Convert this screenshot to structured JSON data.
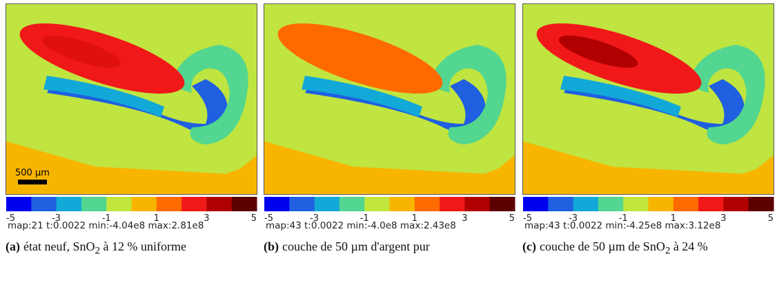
{
  "scale_bar": "500 µm",
  "colorbar": {
    "ticks": [
      "-5",
      "-3",
      "-1",
      "1",
      "3",
      "5"
    ],
    "colors": [
      "#0000f0",
      "#1f5fe0",
      "#12a8d8",
      "#52d690",
      "#c2e63c",
      "#f7b500",
      "#ff6a00",
      "#f01818",
      "#b00000",
      "#5c0000"
    ]
  },
  "panels": [
    {
      "label": "(a)",
      "caption": [
        "état neuf, SnO",
        "2",
        " à 12 % uniforme"
      ],
      "info": "map:21 t:0.0022 min:-4.04e8 max:2.81e8"
    },
    {
      "label": "(b)",
      "caption": [
        "couche de 50 µm d'argent pur"
      ],
      "info": "map:43 t:0.0022 min:-4.0e8 max:2.43e8"
    },
    {
      "label": "(c)",
      "caption": [
        "couche de 50 µm de SnO",
        "2",
        " à 24 %"
      ],
      "info": "map:43 t:0.0022 min:-4.25e8 max:3.12e8"
    }
  ]
}
